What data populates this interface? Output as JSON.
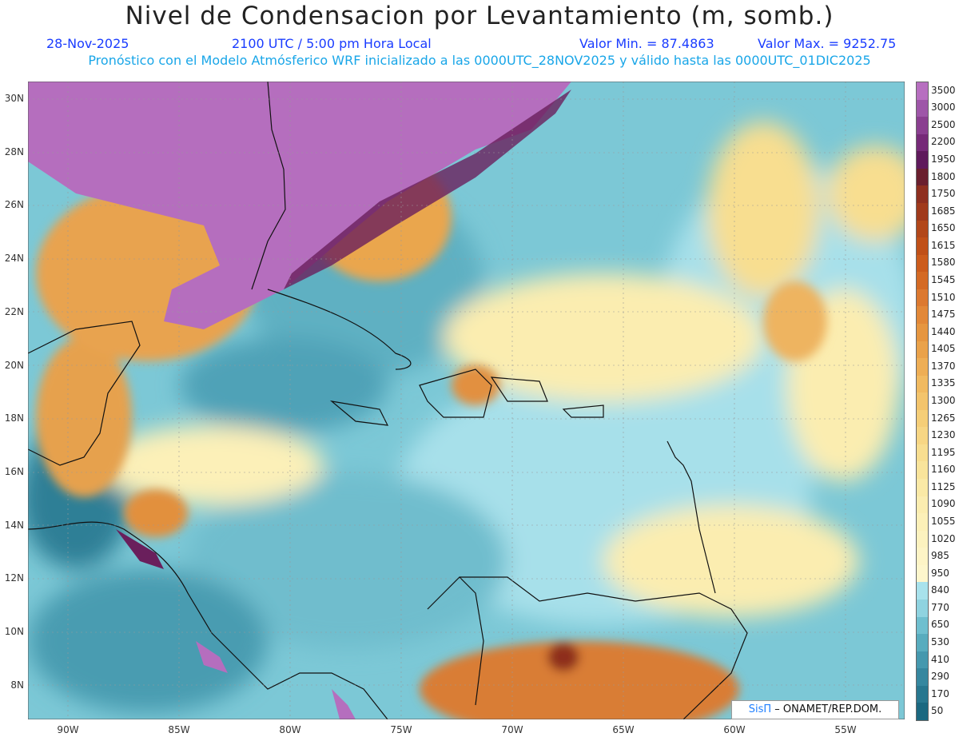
{
  "header": {
    "title": "Nivel de Condensacion por Levantamiento (m, somb.)",
    "date": "28-Nov-2025",
    "time": "2100 UTC / 5:00 pm Hora Local",
    "min_label": "Valor Min. = 87.4863",
    "max_label": "Valor Max. = 9252.75",
    "description": "Pronóstico con el Modelo Atmósferico WRF inicializado a las 0000UTC_28NOV2025 y válido hasta las 0000UTC_01DIC2025"
  },
  "axes": {
    "lat_labels": [
      "30N",
      "28N",
      "26N",
      "24N",
      "22N",
      "20N",
      "18N",
      "16N",
      "14N",
      "12N",
      "10N",
      "8N"
    ],
    "lon_labels": [
      "90W",
      "85W",
      "80W",
      "75W",
      "70W",
      "65W",
      "60W",
      "55W"
    ]
  },
  "colorbar": {
    "labels": [
      "3500",
      "3000",
      "2500",
      "2200",
      "1950",
      "1800",
      "1750",
      "1685",
      "1650",
      "1615",
      "1580",
      "1545",
      "1510",
      "1475",
      "1440",
      "1405",
      "1370",
      "1335",
      "1300",
      "1265",
      "1230",
      "1195",
      "1160",
      "1125",
      "1090",
      "1055",
      "1020",
      "985",
      "950",
      "840",
      "770",
      "650",
      "530",
      "410",
      "290",
      "170",
      "50"
    ],
    "colors": [
      "#b76fc0",
      "#9e56a8",
      "#8a3f90",
      "#762a78",
      "#5f1a5c",
      "#6a1f2e",
      "#8e2f1f",
      "#a03a1b",
      "#b24719",
      "#c05018",
      "#cc5c1c",
      "#d46a24",
      "#dc7930",
      "#e28838",
      "#e69640",
      "#eaa24a",
      "#eeae55",
      "#f1ba60",
      "#f3c46c",
      "#f5ce78",
      "#f7d684",
      "#f8de90",
      "#f9e49b",
      "#fae9a6",
      "#fbedb0",
      "#fcf0b8",
      "#fcf2bf",
      "#fdf4c6",
      "#fdf6cc",
      "#a8e2ec",
      "#8fd3e0",
      "#6fbfcf",
      "#58acbe",
      "#4598ae",
      "#36879f",
      "#28778f",
      "#1b6880"
    ]
  },
  "credit": {
    "logo": "SisΠ",
    "text": "– ONAMET/REP.DOM."
  }
}
